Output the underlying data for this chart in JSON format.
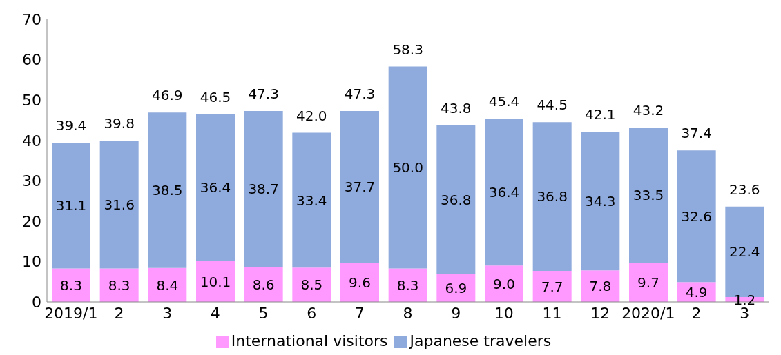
{
  "chart_data": {
    "type": "bar",
    "stacked": true,
    "categories": [
      "2019/1",
      "2",
      "3",
      "4",
      "5",
      "6",
      "7",
      "8",
      "9",
      "10",
      "11",
      "12",
      "2020/1",
      "2",
      "3"
    ],
    "series": [
      {
        "name": "International visitors",
        "color": "#ff99ff",
        "values": [
          8.3,
          8.3,
          8.4,
          10.1,
          8.6,
          8.5,
          9.6,
          8.3,
          6.9,
          9.0,
          7.7,
          7.8,
          9.7,
          4.9,
          1.2
        ],
        "value_labels": [
          "8.3",
          "8.3",
          "8.4",
          "10.1",
          "8.6",
          "8.5",
          "9.6",
          "8.3",
          "6.9",
          "9.0",
          "7.7",
          "7.8",
          "9.7",
          "4.9",
          "1.2"
        ]
      },
      {
        "name": "Japanese travelers",
        "color": "#8faadc",
        "values": [
          31.1,
          31.6,
          38.5,
          36.4,
          38.7,
          33.4,
          37.7,
          50.0,
          36.8,
          36.4,
          36.8,
          34.3,
          33.5,
          32.6,
          22.4
        ],
        "value_labels": [
          "31.1",
          "31.6",
          "38.5",
          "36.4",
          "38.7",
          "33.4",
          "37.7",
          "50.0",
          "36.8",
          "36.4",
          "36.8",
          "34.3",
          "33.5",
          "32.6",
          "22.4"
        ]
      }
    ],
    "totals": [
      "39.4",
      "39.8",
      "46.9",
      "46.5",
      "47.3",
      "42.0",
      "47.3",
      "58.3",
      "43.8",
      "45.4",
      "44.5",
      "42.1",
      "43.2",
      "37.4",
      "23.6"
    ],
    "ylim": [
      0,
      70
    ],
    "yticks": [
      0,
      10,
      20,
      30,
      40,
      50,
      60,
      70
    ],
    "grid": false,
    "legend": "bottom"
  }
}
